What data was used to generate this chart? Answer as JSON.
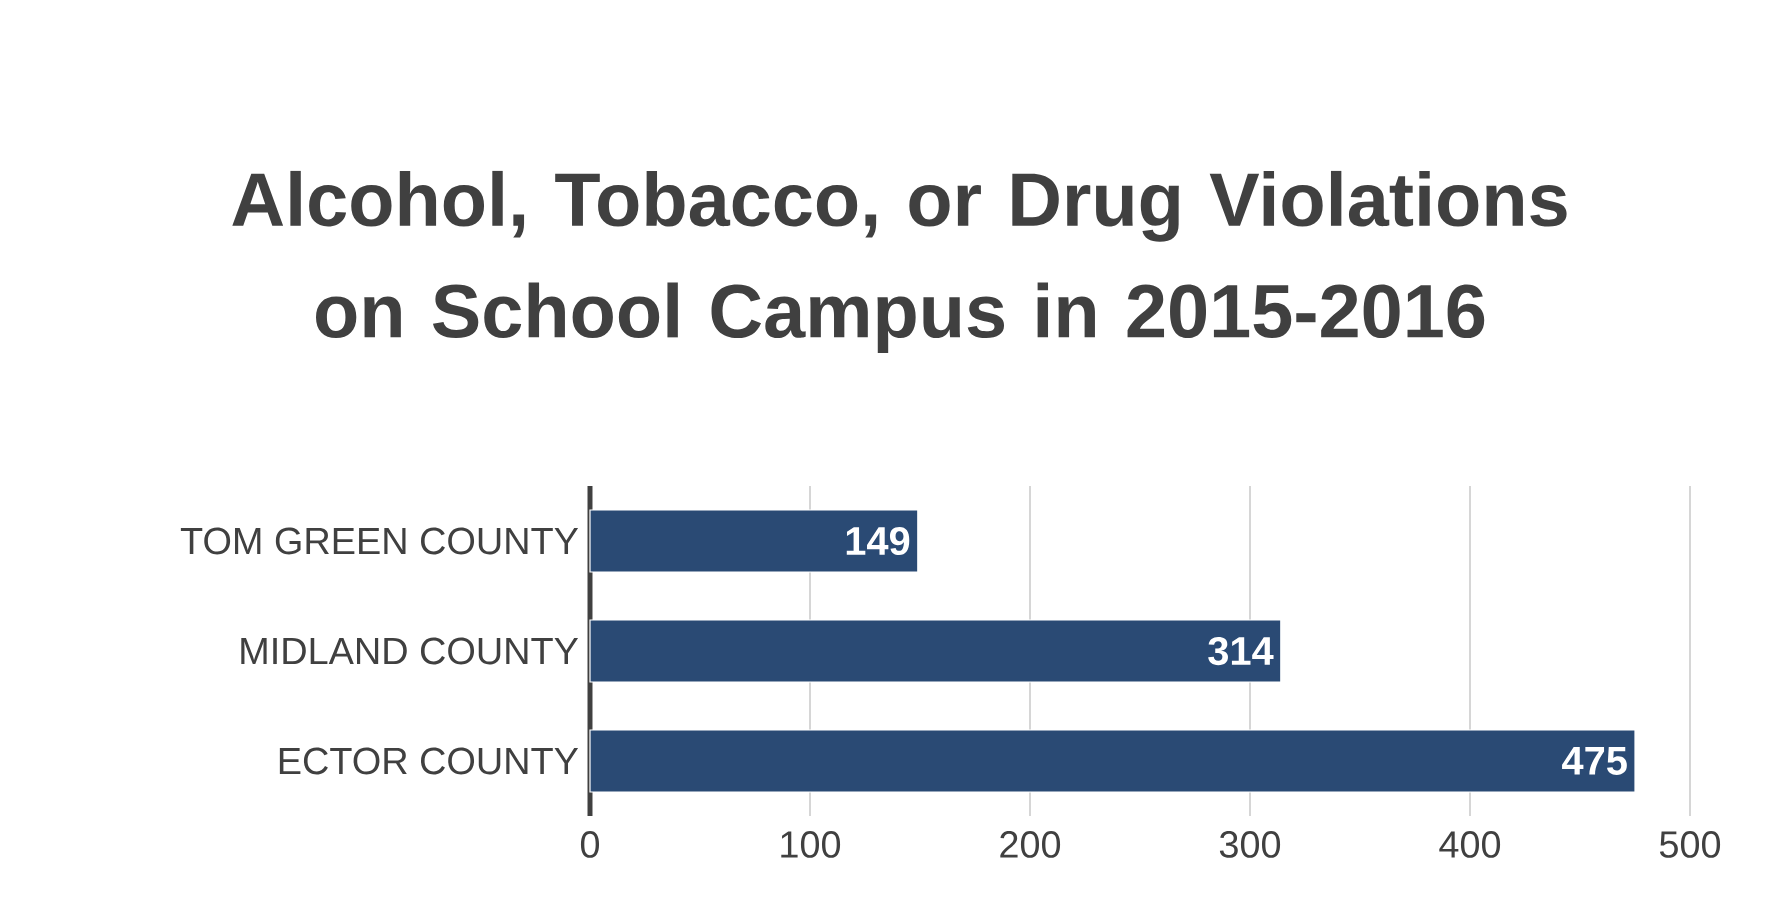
{
  "chart_data": {
    "type": "bar",
    "orientation": "horizontal",
    "title": "Alcohol, Tobacco, or Drug Violations on School Campus in 2015-2016",
    "categories": [
      "TOM GREEN COUNTY",
      "MIDLAND COUNTY",
      "ECTOR COUNTY"
    ],
    "values": [
      149,
      314,
      475
    ],
    "color": "#2a4a74",
    "data_labels": true,
    "xlim": [
      0,
      500
    ],
    "xticks": [
      0,
      100,
      200,
      300,
      400,
      500
    ],
    "grid": "x"
  }
}
